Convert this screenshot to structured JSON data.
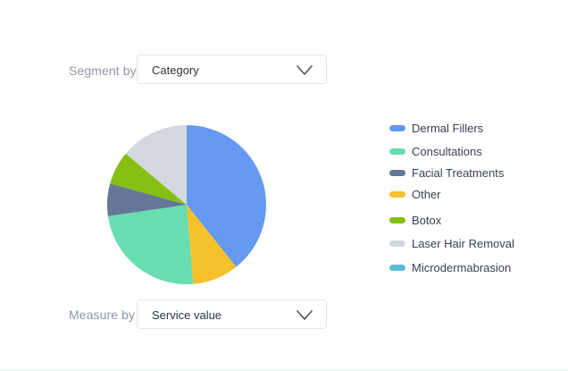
{
  "segment": {
    "label": "Segment by",
    "value": "Category"
  },
  "measure": {
    "label": "Measure by",
    "value": "Service value"
  },
  "icons": {
    "dropdown": "chevron-down-icon"
  },
  "chart_data": {
    "type": "pie",
    "legend_position": "right",
    "categories": [
      "Dermal Fillers",
      "Consultations",
      "Facial Treatments",
      "Other",
      "Botox",
      "Laser Hair Removal",
      "Microdermabrasion"
    ],
    "colors": [
      "#6699f2",
      "#67ddb0",
      "#657796",
      "#f6c12b",
      "#84bf12",
      "#d4d8de",
      "#5bbcd6"
    ],
    "slices": [
      {
        "label": "Dermal Fillers",
        "value": 39.3,
        "color": "#6699f2"
      },
      {
        "label": "Other",
        "value": 9.4,
        "color": "#f6c12b"
      },
      {
        "label": "Consultations",
        "value": 24.0,
        "color": "#67ddb0"
      },
      {
        "label": "Facial Treatments",
        "value": 6.6,
        "color": "#657796"
      },
      {
        "label": "Botox",
        "value": 6.8,
        "color": "#84bf12"
      },
      {
        "label": "Laser Hair Removal",
        "value": 13.9,
        "color": "#d4d8de"
      },
      {
        "label": "Microdermabrasion",
        "value": 0.0,
        "color": "#5bbcd6"
      }
    ]
  }
}
